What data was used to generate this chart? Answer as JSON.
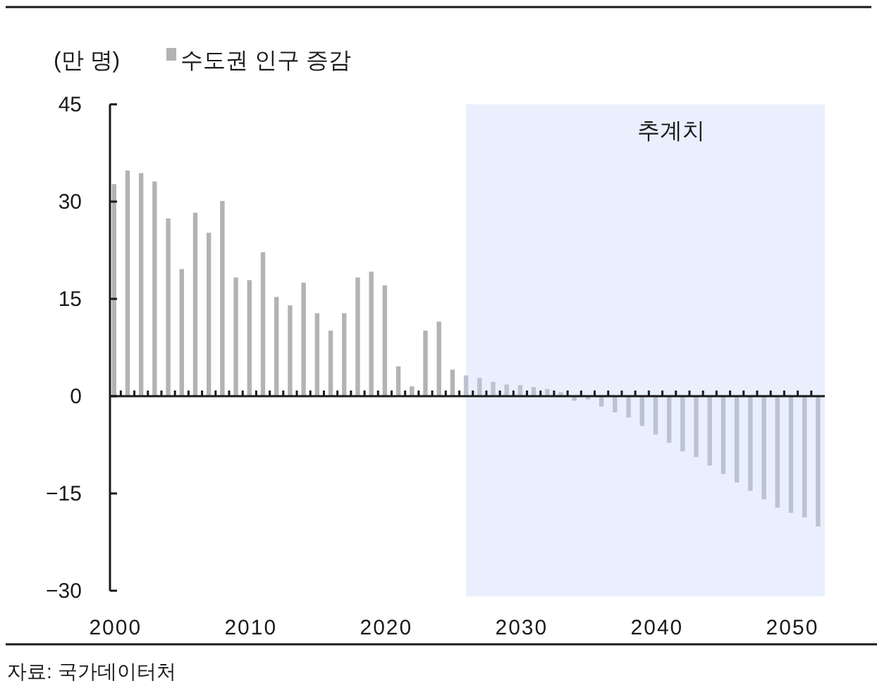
{
  "chart_data": {
    "type": "bar",
    "ylabel": "(만 명)",
    "legend": "top left",
    "x": [
      2000,
      2001,
      2002,
      2003,
      2004,
      2005,
      2006,
      2007,
      2008,
      2009,
      2010,
      2011,
      2012,
      2013,
      2014,
      2015,
      2016,
      2017,
      2018,
      2019,
      2020,
      2021,
      2022,
      2023,
      2024,
      2025,
      2026,
      2027,
      2028,
      2029,
      2030,
      2031,
      2032,
      2033,
      2034,
      2035,
      2036,
      2037,
      2038,
      2039,
      2040,
      2041,
      2042,
      2043,
      2044,
      2045,
      2046,
      2047,
      2048,
      2049,
      2050,
      2051,
      2052
    ],
    "series": [
      {
        "name": "수도권 인구 증감",
        "color": "#b3b3b3",
        "colors": [
          "#b3b3b3",
          "#b3b3b3",
          "#b3b3b3",
          "#b3b3b3",
          "#b3b3b3",
          "#b3b3b3",
          "#b3b3b3",
          "#b3b3b3",
          "#b3b3b3",
          "#b3b3b3",
          "#b3b3b3",
          "#b3b3b3",
          "#b3b3b3",
          "#b3b3b3",
          "#b3b3b3",
          "#b3b3b3",
          "#b3b3b3",
          "#b3b3b3",
          "#b3b3b3",
          "#b3b3b3",
          "#b3b3b3",
          "#b3b3b3",
          "#b3b3b3",
          "#b3b3b3",
          "#b3b3b3",
          "#b3b3b3",
          "#bcc3d0",
          "#bcc3d0",
          "#bcc3d0",
          "#bcc3d0",
          "#bcc3d0",
          "#bcc3d0",
          "#bcc3d0",
          "#bcc3d0",
          "#bcc3d0",
          "#bcc3d0",
          "#bcc3d0",
          "#bcc3d0",
          "#bcc3d0",
          "#bcc3d0",
          "#bcc3d0",
          "#bcc3d0",
          "#bcc3d0",
          "#bcc3d0",
          "#bcc3d0",
          "#bcc3d0",
          "#bcc3d0",
          "#bcc3d0",
          "#bcc3d0",
          "#bcc3d0",
          "#bcc3d0",
          "#bcc3d0",
          "#bcc3d0"
        ],
        "values": [
          32.7,
          34.8,
          34.4,
          33.1,
          27.4,
          19.6,
          28.3,
          25.2,
          30.1,
          18.3,
          17.9,
          22.2,
          15.3,
          14.0,
          17.5,
          12.8,
          10.1,
          12.8,
          18.3,
          19.2,
          17.1,
          4.6,
          1.5,
          10.1,
          11.5,
          4.1,
          3.2,
          2.8,
          2.2,
          1.8,
          1.7,
          1.4,
          1.1,
          0.6,
          -0.7,
          -0.5,
          -1.6,
          -2.5,
          -3.3,
          -4.6,
          -5.9,
          -7.2,
          -8.5,
          -9.4,
          -10.7,
          -12.0,
          -13.3,
          -14.6,
          -15.9,
          -17.2,
          -18.0,
          -18.7,
          -20.1
        ]
      }
    ],
    "xlim": [
      1999.7,
      2052.5
    ],
    "xticks": [
      2000,
      2010,
      2020,
      2030,
      2040,
      2050,
      {
        "value": 2000.5,
        "label": null
      },
      {
        "value": 2001.5,
        "label": null
      },
      {
        "value": 2002.5,
        "label": null
      },
      {
        "value": 2003.5,
        "label": null
      },
      {
        "value": 2004.5,
        "label": null
      },
      {
        "value": 2005.5,
        "label": null
      },
      {
        "value": 2006.5,
        "label": null
      },
      {
        "value": 2007.5,
        "label": null
      },
      {
        "value": 2008.5,
        "label": null
      },
      {
        "value": 2009.5,
        "label": null
      },
      {
        "value": 2010.5,
        "label": null
      },
      {
        "value": 2011.5,
        "label": null
      },
      {
        "value": 2012.5,
        "label": null
      },
      {
        "value": 2013.5,
        "label": null
      },
      {
        "value": 2014.5,
        "label": null
      },
      {
        "value": 2015.5,
        "label": null
      },
      {
        "value": 2016.5,
        "label": null
      },
      {
        "value": 2017.5,
        "label": null
      },
      {
        "value": 2018.5,
        "label": null
      },
      {
        "value": 2019.5,
        "label": null
      },
      {
        "value": 2020.5,
        "label": null
      },
      {
        "value": 2021.5,
        "label": null
      },
      {
        "value": 2022.5,
        "label": null
      },
      {
        "value": 2023.5,
        "label": null
      },
      {
        "value": 2024.5,
        "label": null
      },
      {
        "value": 2025.5,
        "label": null
      },
      {
        "value": 2026.5,
        "label": null
      },
      {
        "value": 2027.5,
        "label": null
      },
      {
        "value": 2028.5,
        "label": null
      },
      {
        "value": 2029.5,
        "label": null
      },
      {
        "value": 2030.5,
        "label": null
      },
      {
        "value": 2031.5,
        "label": null
      },
      {
        "value": 2032.5,
        "label": null
      },
      {
        "value": 2033.5,
        "label": null
      },
      {
        "value": 2034.5,
        "label": null
      },
      {
        "value": 2035.5,
        "label": null
      },
      {
        "value": 2036.5,
        "label": null
      },
      {
        "value": 2037.5,
        "label": null
      },
      {
        "value": 2038.5,
        "label": null
      },
      {
        "value": 2039.5,
        "label": null
      },
      {
        "value": 2040.5,
        "label": null
      },
      {
        "value": 2041.5,
        "label": null
      },
      {
        "value": 2042.5,
        "label": null
      },
      {
        "value": 2043.5,
        "label": null
      },
      {
        "value": 2044.5,
        "label": null
      },
      {
        "value": 2045.5,
        "label": null
      },
      {
        "value": 2046.5,
        "label": null
      },
      {
        "value": 2047.5,
        "label": null
      },
      {
        "value": 2048.5,
        "label": null
      },
      {
        "value": 2049.5,
        "label": null
      },
      {
        "value": 2050.5,
        "label": null
      },
      {
        "value": 2051.5,
        "label": null
      }
    ],
    "ylim": [
      -30,
      45
    ],
    "yticks": [
      45,
      30,
      15,
      0,
      {
        "value": -15,
        "label": "−15"
      },
      {
        "value": -30,
        "label": "−30"
      }
    ],
    "bands": [
      {
        "axis": "x",
        "from": 2026,
        "to": 2052.5,
        "label": "추계치",
        "color": "#e9effc"
      }
    ],
    "annotations": [
      "자료: 국가데이터처"
    ]
  }
}
